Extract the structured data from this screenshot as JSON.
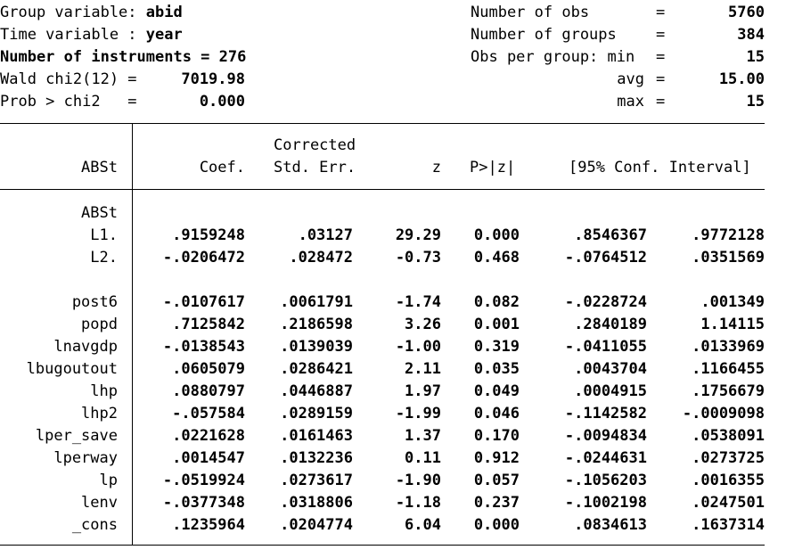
{
  "header_left": {
    "group_label": "Group variable: ",
    "group_value": "abid",
    "time_label": "Time variable : ",
    "time_value": "year",
    "instruments": "Number of instruments = 276",
    "wald_label": "Wald chi2(12) =",
    "wald_value": "7019.98",
    "prob_label": "Prob > chi2   =",
    "prob_value": "0.000"
  },
  "header_right": {
    "obs_label": "Number of obs",
    "obs_value": "5760",
    "groups_label": "Number of groups",
    "groups_value": "384",
    "opg_label": "Obs per group: min",
    "opg_min": "15",
    "avg_label": "avg",
    "avg_value": "15.00",
    "max_label": "max",
    "max_value": "15",
    "eq": "="
  },
  "columns": {
    "var": "ABSt",
    "coef": "Coef.",
    "se_top": "Corrected",
    "se": "Std. Err.",
    "z": "z",
    "p": "P>|z|",
    "ci": "[95% Conf. Interval]"
  },
  "group_heading": "ABSt",
  "rows": [
    {
      "var": "L1.",
      "coef": ".9159248",
      "se": ".03127",
      "z": "29.29",
      "p": "0.000",
      "lo": ".8546367",
      "hi": ".9772128"
    },
    {
      "var": "L2.",
      "coef": "-.0206472",
      "se": ".028472",
      "z": "-0.73",
      "p": "0.468",
      "lo": "-.0764512",
      "hi": ".0351569"
    },
    {
      "var": "post6",
      "coef": "-.0107617",
      "se": ".0061791",
      "z": "-1.74",
      "p": "0.082",
      "lo": "-.0228724",
      "hi": ".001349"
    },
    {
      "var": "popd",
      "coef": ".7125842",
      "se": ".2186598",
      "z": "3.26",
      "p": "0.001",
      "lo": ".2840189",
      "hi": "1.14115"
    },
    {
      "var": "lnavgdp",
      "coef": "-.0138543",
      "se": ".0139039",
      "z": "-1.00",
      "p": "0.319",
      "lo": "-.0411055",
      "hi": ".0133969"
    },
    {
      "var": "lbugoutout",
      "coef": ".0605079",
      "se": ".0286421",
      "z": "2.11",
      "p": "0.035",
      "lo": ".0043704",
      "hi": ".1166455"
    },
    {
      "var": "lhp",
      "coef": ".0880797",
      "se": ".0446887",
      "z": "1.97",
      "p": "0.049",
      "lo": ".0004915",
      "hi": ".1756679"
    },
    {
      "var": "lhp2",
      "coef": "-.057584",
      "se": ".0289159",
      "z": "-1.99",
      "p": "0.046",
      "lo": "-.1142582",
      "hi": "-.0009098"
    },
    {
      "var": "lper_save",
      "coef": ".0221628",
      "se": ".0161463",
      "z": "1.37",
      "p": "0.170",
      "lo": "-.0094834",
      "hi": ".0538091"
    },
    {
      "var": "lperway",
      "coef": ".0014547",
      "se": ".0132236",
      "z": "0.11",
      "p": "0.912",
      "lo": "-.0244631",
      "hi": ".0273725"
    },
    {
      "var": "lp",
      "coef": "-.0519924",
      "se": ".0273617",
      "z": "-1.90",
      "p": "0.057",
      "lo": "-.1056203",
      "hi": ".0016355"
    },
    {
      "var": "lenv",
      "coef": "-.0377348",
      "se": ".0318806",
      "z": "-1.18",
      "p": "0.237",
      "lo": "-.1002198",
      "hi": ".0247501"
    },
    {
      "var": "_cons",
      "coef": ".1235964",
      "se": ".0204774",
      "z": "6.04",
      "p": "0.000",
      "lo": ".0834613",
      "hi": ".1637314"
    }
  ]
}
